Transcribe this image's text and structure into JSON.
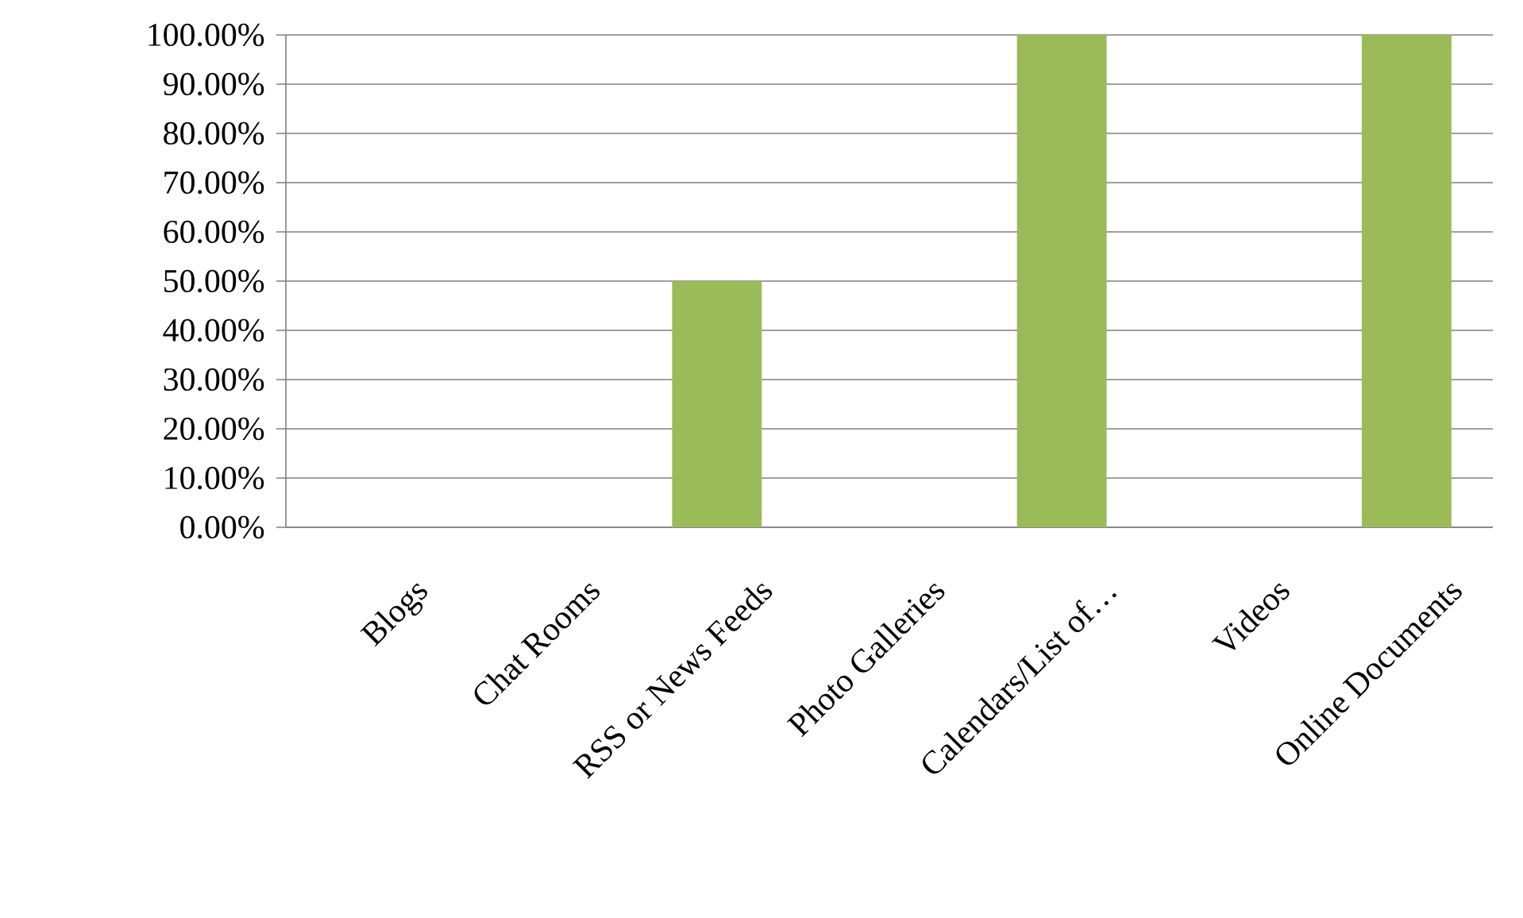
{
  "chart_data": {
    "type": "bar",
    "categories": [
      "Blogs",
      "Chat Rooms",
      "RSS or News Feeds",
      "Photo Galleries",
      "Calendars/List of…",
      "Videos",
      "Online Documents"
    ],
    "values": [
      0,
      0,
      50,
      0,
      100,
      0,
      100
    ],
    "color": "#9bbb59",
    "ylim": [
      0,
      100
    ],
    "yticks": [
      {
        "value": 0,
        "label": "0.00%"
      },
      {
        "value": 10,
        "label": "10.00%"
      },
      {
        "value": 20,
        "label": "20.00%"
      },
      {
        "value": 30,
        "label": "30.00%"
      },
      {
        "value": 40,
        "label": "40.00%"
      },
      {
        "value": 50,
        "label": "50.00%"
      },
      {
        "value": 60,
        "label": "60.00%"
      },
      {
        "value": 70,
        "label": "70.00%"
      },
      {
        "value": 80,
        "label": "80.00%"
      },
      {
        "value": 90,
        "label": "90.00%"
      },
      {
        "value": 100,
        "label": "100.00%"
      }
    ],
    "grid": "y"
  }
}
